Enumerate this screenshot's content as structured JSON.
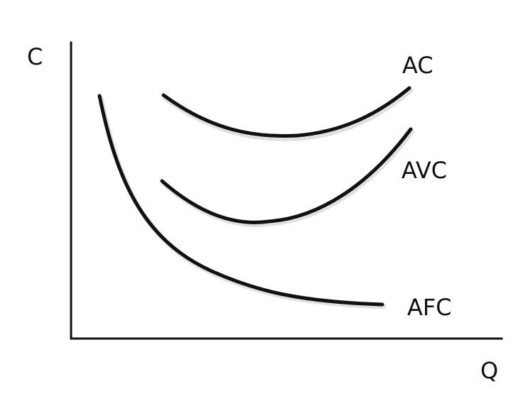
{
  "axes": {
    "y_label": "C",
    "x_label": "Q"
  },
  "curves": [
    {
      "id": "ac",
      "label": "AC"
    },
    {
      "id": "avc",
      "label": "AVC"
    },
    {
      "id": "afc",
      "label": "AFC"
    }
  ],
  "colors": {
    "ink": "#111111",
    "background": "#ffffff"
  }
}
